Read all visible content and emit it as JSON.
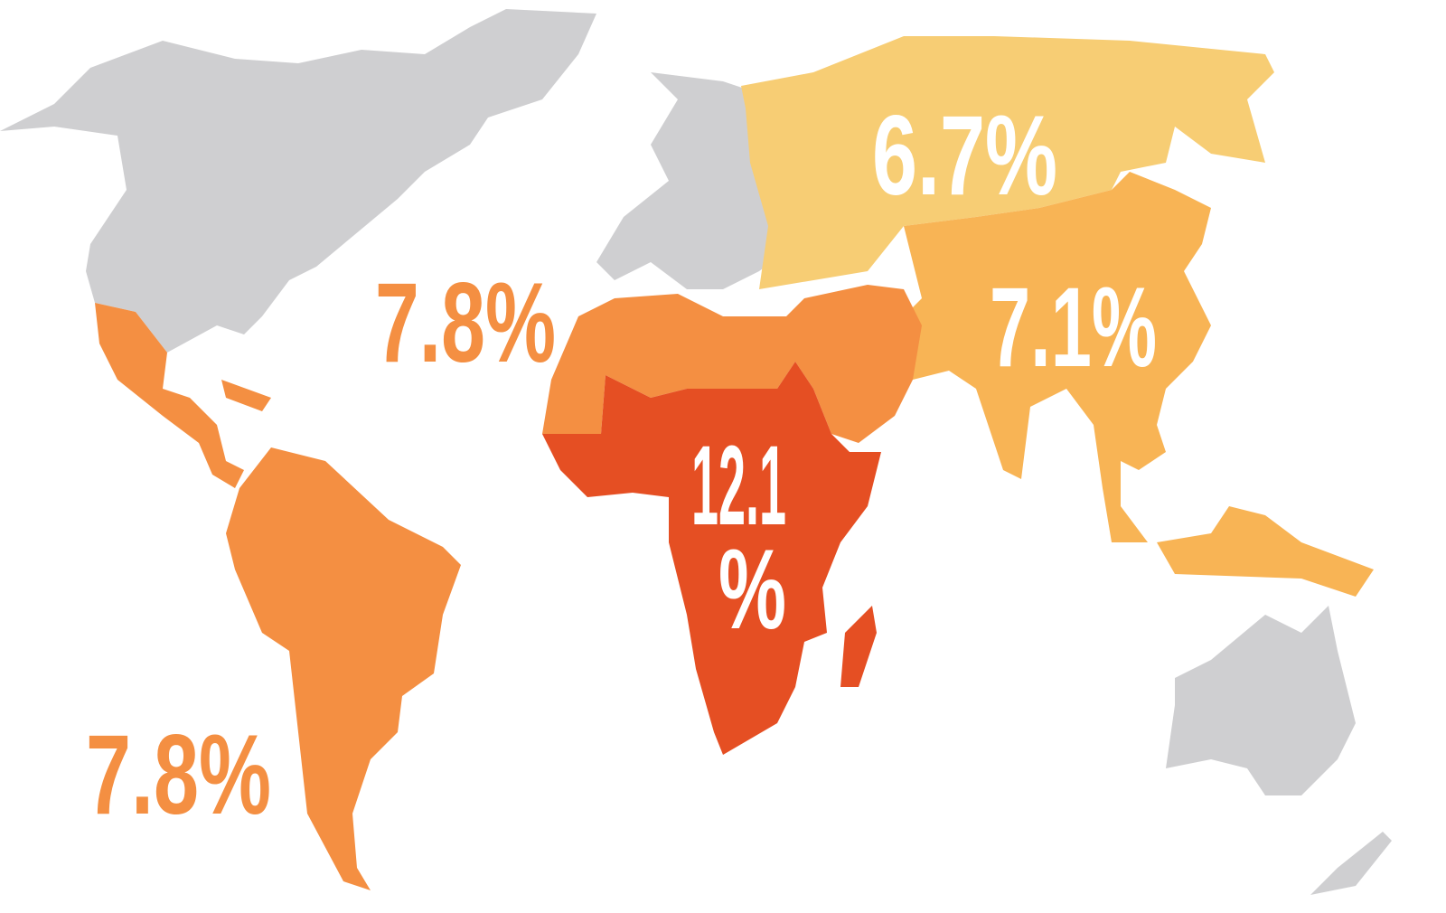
{
  "regions": [
    {
      "label": "6.7%"
    },
    {
      "label": "7.1%"
    },
    {
      "label": "7.8%"
    },
    {
      "label": "7.8%"
    },
    {
      "label_lines": [
        "12.1",
        "%"
      ]
    }
  ]
}
